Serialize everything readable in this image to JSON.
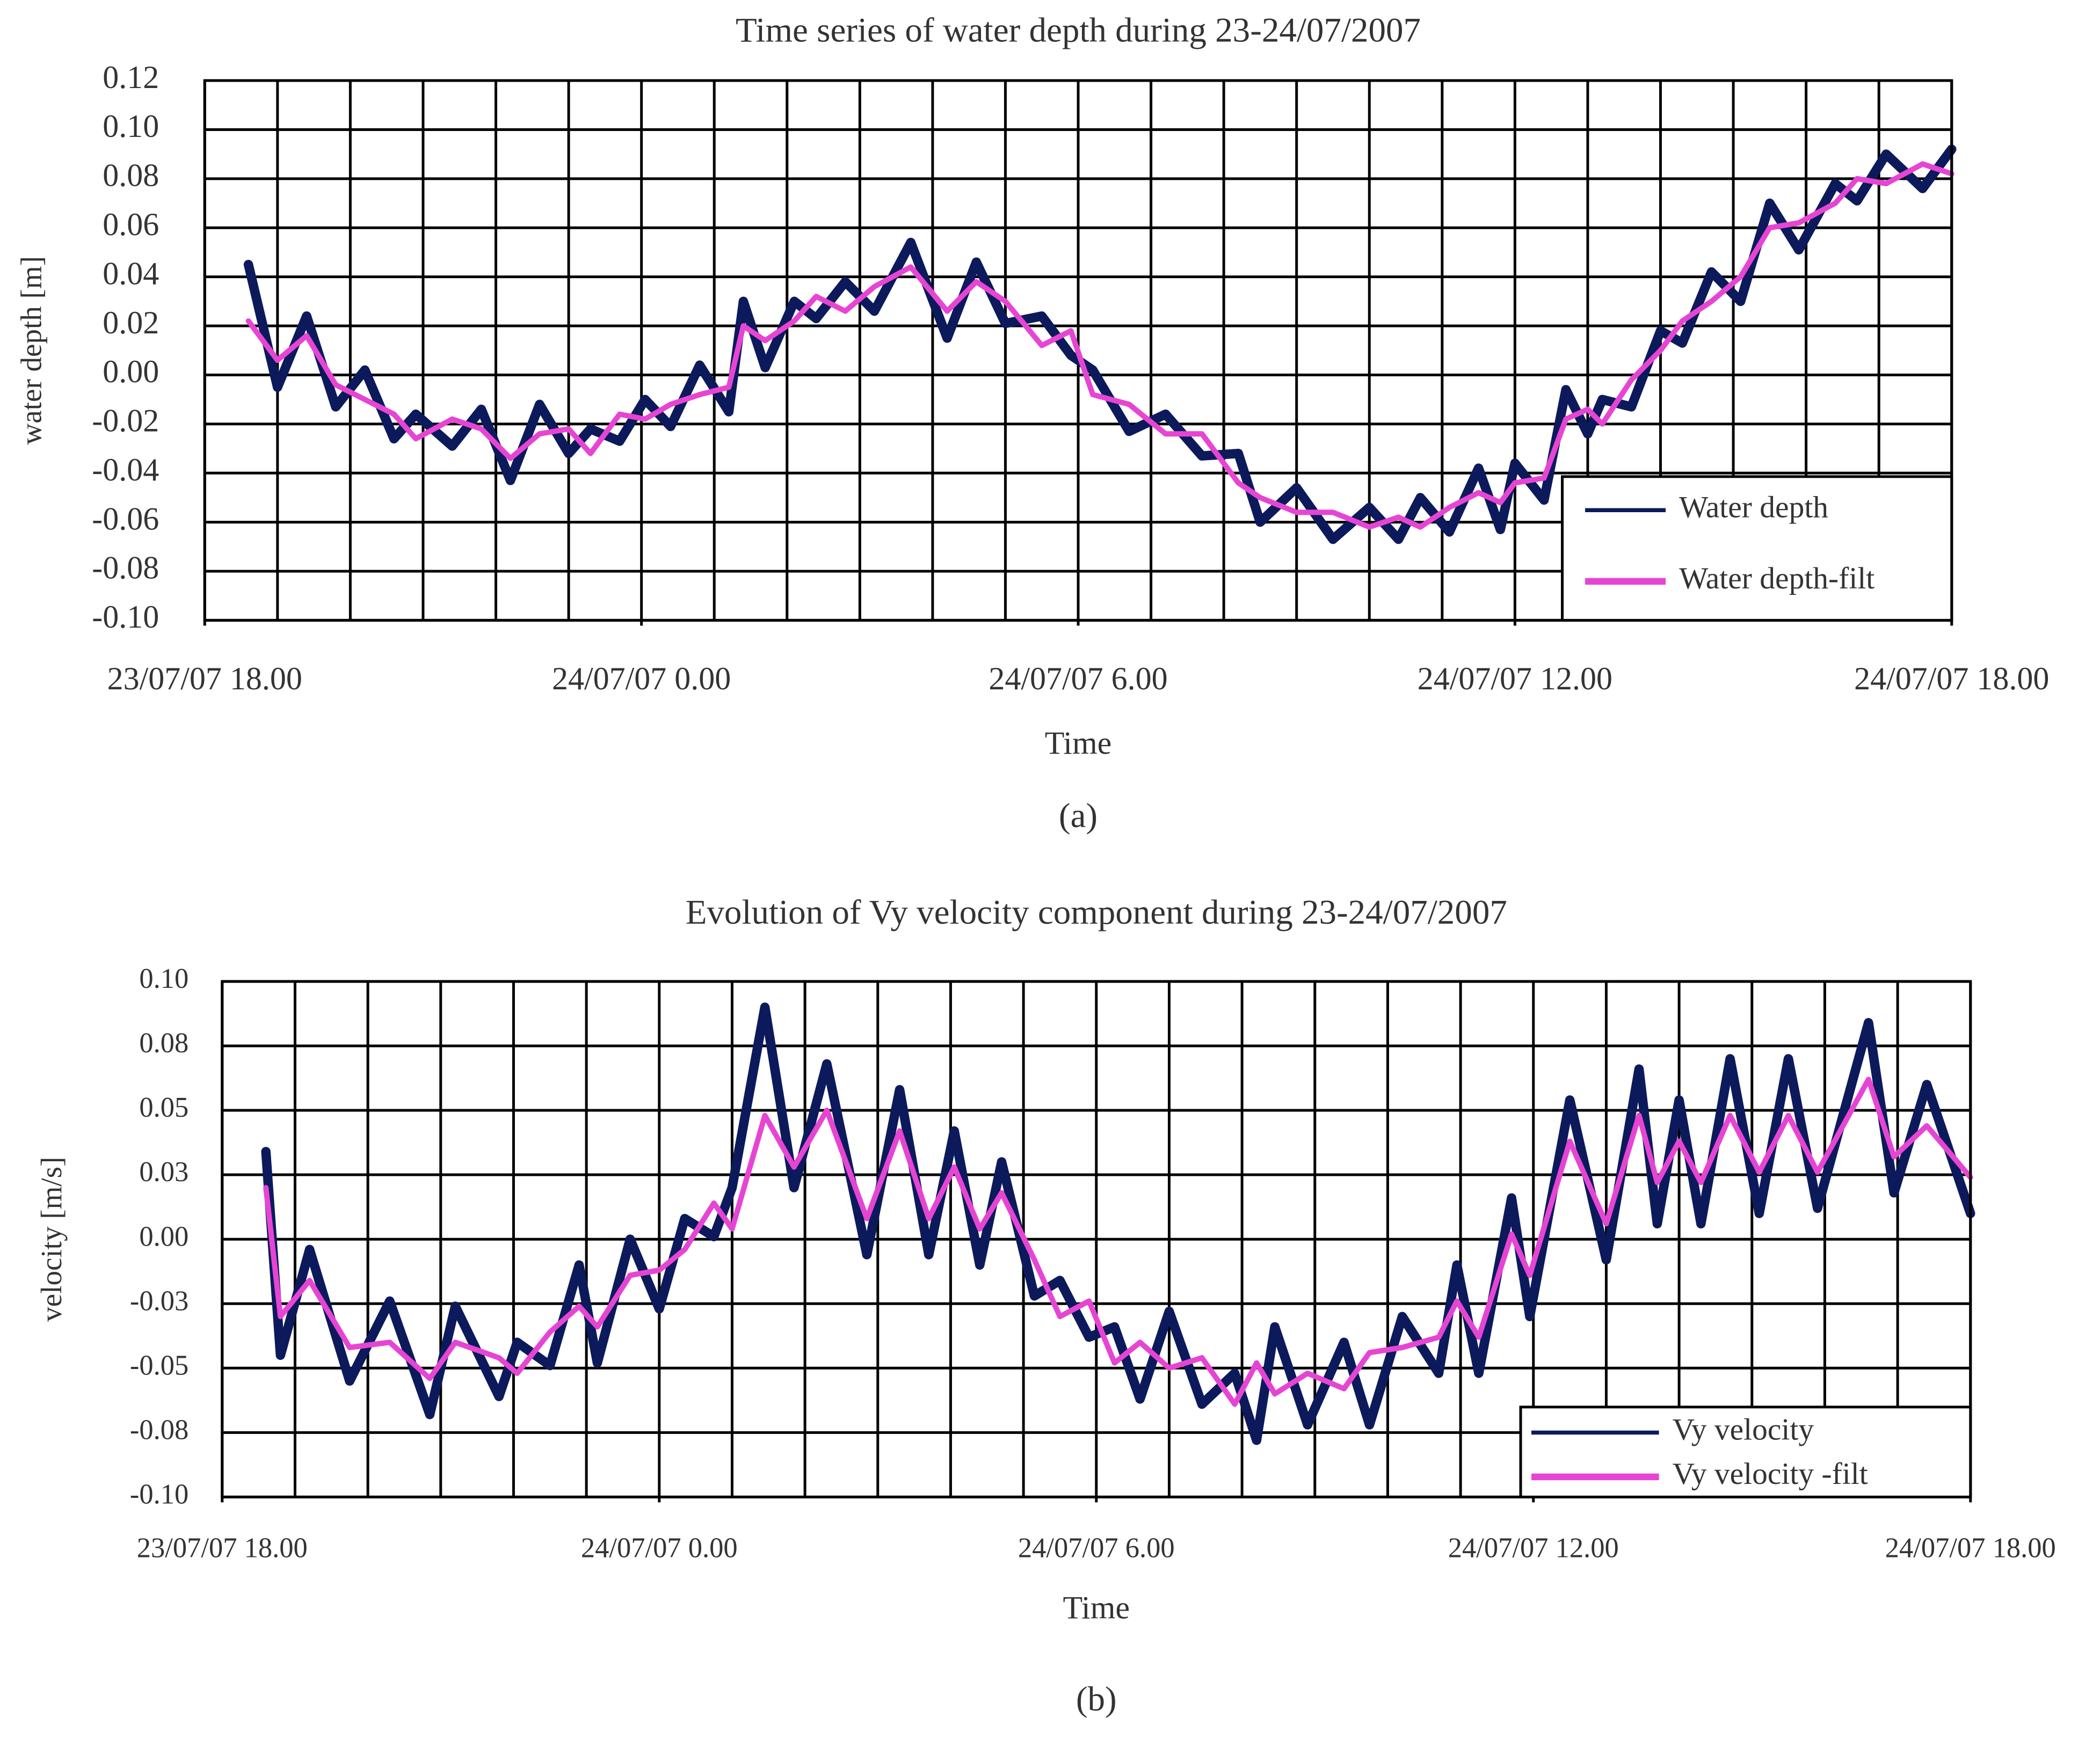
{
  "chart_data": [
    {
      "type": "line",
      "title": "Time series of water depth during 23-24/07/2007",
      "x_label": "Time",
      "y_label": "water depth [m]",
      "caption": "(a)",
      "xlim": [
        18,
        42
      ],
      "xticks": [
        {
          "value": 18,
          "label": "23/07/07 18.00"
        },
        {
          "value": 24,
          "label": "24/07/07 0.00"
        },
        {
          "value": 30,
          "label": "24/07/07 6.00"
        },
        {
          "value": 36,
          "label": "24/07/07 12.00"
        },
        {
          "value": 42,
          "label": "24/07/07 18.00"
        }
      ],
      "x_grid": [
        18,
        19,
        20,
        21,
        22,
        23,
        24,
        25,
        26,
        27,
        28,
        29,
        30,
        31,
        32,
        33,
        34,
        35,
        36,
        37,
        38,
        39,
        40,
        41,
        42
      ],
      "ylim": [
        -0.1,
        0.12
      ],
      "yticks": [
        {
          "value": -0.1,
          "label": "-0.10"
        },
        {
          "value": -0.08,
          "label": "-0.08"
        },
        {
          "value": -0.06,
          "label": "-0.06"
        },
        {
          "value": -0.04,
          "label": "-0.04"
        },
        {
          "value": -0.02,
          "label": "-0.02"
        },
        {
          "value": 0,
          "label": "0.00"
        },
        0.02,
        0.04,
        0.06,
        0.08,
        {
          "value": 0.1,
          "label": "0.10"
        },
        0.12
      ],
      "grid": true,
      "legend": "lower right",
      "series": [
        {
          "name": "Water depth",
          "color": "#0c1a5c",
          "x": [
            18.6,
            19.0,
            19.4,
            19.8,
            20.2,
            20.6,
            20.9,
            21.4,
            21.8,
            22.2,
            22.6,
            23.0,
            23.3,
            23.7,
            24.05,
            24.4,
            24.8,
            25.2,
            25.4,
            25.7,
            26.1,
            26.4,
            26.8,
            27.2,
            27.7,
            28.2,
            28.6,
            29.0,
            29.5,
            29.9,
            30.2,
            30.7,
            31.2,
            31.7,
            32.2,
            32.5,
            33.0,
            33.5,
            34.0,
            34.4,
            34.7,
            35.1,
            35.5,
            35.8,
            36.0,
            36.4,
            36.7,
            37.0,
            37.2,
            37.6,
            38.0,
            38.3,
            38.7,
            39.1,
            39.5,
            39.9,
            40.4,
            40.7,
            41.1,
            41.6,
            42.0
          ],
          "values": [
            0.045,
            -0.005,
            0.024,
            -0.013,
            0.002,
            -0.026,
            -0.016,
            -0.029,
            -0.014,
            -0.043,
            -0.012,
            -0.032,
            -0.022,
            -0.027,
            -0.01,
            -0.021,
            0.004,
            -0.015,
            0.03,
            0.003,
            0.03,
            0.023,
            0.038,
            0.026,
            0.054,
            0.015,
            0.046,
            0.021,
            0.024,
            0.008,
            0.002,
            -0.023,
            -0.016,
            -0.033,
            -0.032,
            -0.06,
            -0.046,
            -0.067,
            -0.054,
            -0.067,
            -0.05,
            -0.064,
            -0.038,
            -0.063,
            -0.036,
            -0.051,
            -0.006,
            -0.024,
            -0.01,
            -0.013,
            0.018,
            0.013,
            0.042,
            0.03,
            0.07,
            0.051,
            0.078,
            0.071,
            0.09,
            0.076,
            0.092
          ]
        },
        {
          "name": "Water depth-filt",
          "color": "#e645d4",
          "x": [
            18.6,
            19.0,
            19.4,
            19.8,
            20.2,
            20.6,
            20.9,
            21.4,
            21.8,
            22.2,
            22.6,
            23.0,
            23.3,
            23.7,
            24.05,
            24.4,
            24.8,
            25.2,
            25.4,
            25.7,
            26.1,
            26.4,
            26.8,
            27.2,
            27.7,
            28.2,
            28.6,
            29.0,
            29.5,
            29.9,
            30.2,
            30.7,
            31.2,
            31.7,
            32.2,
            32.5,
            33.0,
            33.5,
            34.0,
            34.4,
            34.7,
            35.1,
            35.5,
            35.8,
            36.0,
            36.4,
            36.7,
            37.0,
            37.2,
            37.6,
            38.0,
            38.3,
            38.7,
            39.1,
            39.5,
            39.9,
            40.4,
            40.7,
            41.1,
            41.6,
            42.0
          ],
          "values": [
            0.022,
            0.006,
            0.016,
            -0.004,
            -0.01,
            -0.016,
            -0.026,
            -0.018,
            -0.022,
            -0.034,
            -0.024,
            -0.022,
            -0.032,
            -0.016,
            -0.018,
            -0.012,
            -0.008,
            -0.005,
            0.02,
            0.014,
            0.022,
            0.032,
            0.026,
            0.036,
            0.044,
            0.026,
            0.038,
            0.03,
            0.012,
            0.018,
            -0.008,
            -0.012,
            -0.024,
            -0.024,
            -0.044,
            -0.05,
            -0.056,
            -0.056,
            -0.062,
            -0.058,
            -0.062,
            -0.054,
            -0.048,
            -0.052,
            -0.044,
            -0.042,
            -0.018,
            -0.014,
            -0.02,
            -0.002,
            0.01,
            0.022,
            0.03,
            0.04,
            0.06,
            0.062,
            0.07,
            0.08,
            0.078,
            0.086,
            0.082
          ]
        }
      ]
    },
    {
      "type": "line",
      "title": "Evolution of Vy velocity component during 23-24/07/2007",
      "x_label": "Time",
      "y_label": "velocity [m/s]",
      "caption": "(b)",
      "xlim": [
        18,
        42
      ],
      "xticks": [
        {
          "value": 18,
          "label": "23/07/07 18.00"
        },
        {
          "value": 24,
          "label": "24/07/07 0.00"
        },
        {
          "value": 30,
          "label": "24/07/07 6.00"
        },
        {
          "value": 36,
          "label": "24/07/07 12.00"
        },
        {
          "value": 42,
          "label": "24/07/07 18.00"
        }
      ],
      "x_grid": [
        18,
        19,
        20,
        21,
        22,
        23,
        24,
        25,
        26,
        27,
        28,
        29,
        30,
        31,
        32,
        33,
        34,
        35,
        36,
        37,
        38,
        39,
        40,
        41,
        42
      ],
      "ylim": [
        -0.1,
        0.1
      ],
      "yticks": [
        {
          "value": -0.1,
          "label": "-0.10"
        },
        {
          "value": -0.075,
          "label": "-0.08"
        },
        {
          "value": -0.05,
          "label": "-0.05"
        },
        {
          "value": -0.025,
          "label": "-0.03"
        },
        {
          "value": 0,
          "label": "0.00"
        },
        {
          "value": 0.025,
          "label": "0.03"
        },
        0.05,
        {
          "value": 0.075,
          "label": "0.08"
        },
        {
          "value": 0.1,
          "label": "0.10"
        }
      ],
      "grid": true,
      "legend": "lower right",
      "series": [
        {
          "name": "Vy velocity",
          "color": "#0c1a5c",
          "x": [
            18.6,
            18.8,
            19.2,
            19.75,
            20.3,
            20.85,
            21.2,
            21.8,
            22.05,
            22.5,
            22.9,
            23.15,
            23.6,
            24.0,
            24.35,
            24.75,
            25.0,
            25.45,
            25.85,
            26.3,
            26.85,
            27.3,
            27.7,
            28.05,
            28.4,
            28.7,
            29.15,
            29.5,
            29.9,
            30.25,
            30.6,
            31.0,
            31.45,
            31.9,
            32.2,
            32.45,
            32.9,
            33.4,
            33.75,
            34.2,
            34.7,
            34.95,
            35.25,
            35.7,
            35.95,
            36.5,
            37.0,
            37.45,
            37.7,
            38.0,
            38.3,
            38.7,
            39.1,
            39.5,
            39.9,
            40.6,
            40.95,
            41.4,
            42.0
          ],
          "values": [
            0.034,
            -0.045,
            -0.004,
            -0.055,
            -0.024,
            -0.068,
            -0.026,
            -0.061,
            -0.04,
            -0.049,
            -0.01,
            -0.048,
            0.0,
            -0.027,
            0.008,
            0.001,
            0.02,
            0.09,
            0.02,
            0.068,
            -0.006,
            0.058,
            -0.006,
            0.042,
            -0.01,
            0.03,
            -0.022,
            -0.016,
            -0.038,
            -0.034,
            -0.062,
            -0.028,
            -0.064,
            -0.052,
            -0.078,
            -0.034,
            -0.072,
            -0.04,
            -0.072,
            -0.03,
            -0.052,
            -0.01,
            -0.052,
            0.016,
            -0.03,
            0.054,
            -0.008,
            0.066,
            0.006,
            0.054,
            0.006,
            0.07,
            0.01,
            0.07,
            0.012,
            0.084,
            0.018,
            0.06,
            0.01
          ]
        },
        {
          "name": "Vy velocity -filt",
          "color": "#e645d4",
          "x": [
            18.6,
            18.8,
            19.2,
            19.75,
            20.3,
            20.85,
            21.2,
            21.8,
            22.05,
            22.5,
            22.9,
            23.15,
            23.6,
            24.0,
            24.35,
            24.75,
            25.0,
            25.45,
            25.85,
            26.3,
            26.85,
            27.3,
            27.7,
            28.05,
            28.4,
            28.7,
            29.15,
            29.5,
            29.9,
            30.25,
            30.6,
            31.0,
            31.45,
            31.9,
            32.2,
            32.45,
            32.9,
            33.4,
            33.75,
            34.2,
            34.7,
            34.95,
            35.25,
            35.7,
            35.95,
            36.5,
            37.0,
            37.45,
            37.7,
            38.0,
            38.3,
            38.7,
            39.1,
            39.5,
            39.9,
            40.6,
            40.95,
            41.4,
            42.0
          ],
          "values": [
            0.02,
            -0.03,
            -0.016,
            -0.042,
            -0.04,
            -0.054,
            -0.04,
            -0.046,
            -0.052,
            -0.036,
            -0.026,
            -0.034,
            -0.014,
            -0.012,
            -0.004,
            0.014,
            0.004,
            0.048,
            0.028,
            0.05,
            0.008,
            0.042,
            0.008,
            0.028,
            0.004,
            0.018,
            -0.008,
            -0.03,
            -0.024,
            -0.048,
            -0.04,
            -0.05,
            -0.046,
            -0.064,
            -0.048,
            -0.06,
            -0.052,
            -0.058,
            -0.044,
            -0.042,
            -0.038,
            -0.024,
            -0.038,
            0.002,
            -0.014,
            0.038,
            0.006,
            0.048,
            0.022,
            0.038,
            0.022,
            0.048,
            0.026,
            0.048,
            0.026,
            0.062,
            0.032,
            0.044,
            0.024
          ]
        }
      ]
    }
  ]
}
